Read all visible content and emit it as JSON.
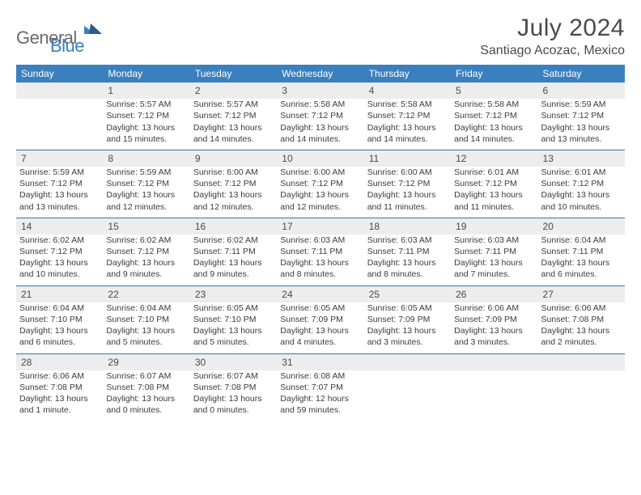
{
  "logo": {
    "part1": "General",
    "part2": "Blue"
  },
  "title": "July 2024",
  "subtitle": "Santiago Acozac, Mexico",
  "colors": {
    "header_bg": "#3a80bf",
    "header_text": "#ffffff",
    "daynum_bg": "#ededed",
    "week_border": "#3a75a8",
    "body_text": "#3b3b3b",
    "page_bg": "#ffffff",
    "logo_gray": "#6a6a6a",
    "logo_blue": "#3a80bf"
  },
  "day_headers": [
    "Sunday",
    "Monday",
    "Tuesday",
    "Wednesday",
    "Thursday",
    "Friday",
    "Saturday"
  ],
  "weeks": [
    [
      null,
      {
        "n": "1",
        "sr": "5:57 AM",
        "ss": "7:12 PM",
        "dl": "13 hours and 15 minutes."
      },
      {
        "n": "2",
        "sr": "5:57 AM",
        "ss": "7:12 PM",
        "dl": "13 hours and 14 minutes."
      },
      {
        "n": "3",
        "sr": "5:58 AM",
        "ss": "7:12 PM",
        "dl": "13 hours and 14 minutes."
      },
      {
        "n": "4",
        "sr": "5:58 AM",
        "ss": "7:12 PM",
        "dl": "13 hours and 14 minutes."
      },
      {
        "n": "5",
        "sr": "5:58 AM",
        "ss": "7:12 PM",
        "dl": "13 hours and 14 minutes."
      },
      {
        "n": "6",
        "sr": "5:59 AM",
        "ss": "7:12 PM",
        "dl": "13 hours and 13 minutes."
      }
    ],
    [
      {
        "n": "7",
        "sr": "5:59 AM",
        "ss": "7:12 PM",
        "dl": "13 hours and 13 minutes."
      },
      {
        "n": "8",
        "sr": "5:59 AM",
        "ss": "7:12 PM",
        "dl": "13 hours and 12 minutes."
      },
      {
        "n": "9",
        "sr": "6:00 AM",
        "ss": "7:12 PM",
        "dl": "13 hours and 12 minutes."
      },
      {
        "n": "10",
        "sr": "6:00 AM",
        "ss": "7:12 PM",
        "dl": "13 hours and 12 minutes."
      },
      {
        "n": "11",
        "sr": "6:00 AM",
        "ss": "7:12 PM",
        "dl": "13 hours and 11 minutes."
      },
      {
        "n": "12",
        "sr": "6:01 AM",
        "ss": "7:12 PM",
        "dl": "13 hours and 11 minutes."
      },
      {
        "n": "13",
        "sr": "6:01 AM",
        "ss": "7:12 PM",
        "dl": "13 hours and 10 minutes."
      }
    ],
    [
      {
        "n": "14",
        "sr": "6:02 AM",
        "ss": "7:12 PM",
        "dl": "13 hours and 10 minutes."
      },
      {
        "n": "15",
        "sr": "6:02 AM",
        "ss": "7:12 PM",
        "dl": "13 hours and 9 minutes."
      },
      {
        "n": "16",
        "sr": "6:02 AM",
        "ss": "7:11 PM",
        "dl": "13 hours and 9 minutes."
      },
      {
        "n": "17",
        "sr": "6:03 AM",
        "ss": "7:11 PM",
        "dl": "13 hours and 8 minutes."
      },
      {
        "n": "18",
        "sr": "6:03 AM",
        "ss": "7:11 PM",
        "dl": "13 hours and 8 minutes."
      },
      {
        "n": "19",
        "sr": "6:03 AM",
        "ss": "7:11 PM",
        "dl": "13 hours and 7 minutes."
      },
      {
        "n": "20",
        "sr": "6:04 AM",
        "ss": "7:11 PM",
        "dl": "13 hours and 6 minutes."
      }
    ],
    [
      {
        "n": "21",
        "sr": "6:04 AM",
        "ss": "7:10 PM",
        "dl": "13 hours and 6 minutes."
      },
      {
        "n": "22",
        "sr": "6:04 AM",
        "ss": "7:10 PM",
        "dl": "13 hours and 5 minutes."
      },
      {
        "n": "23",
        "sr": "6:05 AM",
        "ss": "7:10 PM",
        "dl": "13 hours and 5 minutes."
      },
      {
        "n": "24",
        "sr": "6:05 AM",
        "ss": "7:09 PM",
        "dl": "13 hours and 4 minutes."
      },
      {
        "n": "25",
        "sr": "6:05 AM",
        "ss": "7:09 PM",
        "dl": "13 hours and 3 minutes."
      },
      {
        "n": "26",
        "sr": "6:06 AM",
        "ss": "7:09 PM",
        "dl": "13 hours and 3 minutes."
      },
      {
        "n": "27",
        "sr": "6:06 AM",
        "ss": "7:08 PM",
        "dl": "13 hours and 2 minutes."
      }
    ],
    [
      {
        "n": "28",
        "sr": "6:06 AM",
        "ss": "7:08 PM",
        "dl": "13 hours and 1 minute."
      },
      {
        "n": "29",
        "sr": "6:07 AM",
        "ss": "7:08 PM",
        "dl": "13 hours and 0 minutes."
      },
      {
        "n": "30",
        "sr": "6:07 AM",
        "ss": "7:08 PM",
        "dl": "13 hours and 0 minutes."
      },
      {
        "n": "31",
        "sr": "6:08 AM",
        "ss": "7:07 PM",
        "dl": "12 hours and 59 minutes."
      },
      null,
      null,
      null
    ]
  ],
  "labels": {
    "sunrise": "Sunrise:",
    "sunset": "Sunset:",
    "daylight": "Daylight:"
  }
}
